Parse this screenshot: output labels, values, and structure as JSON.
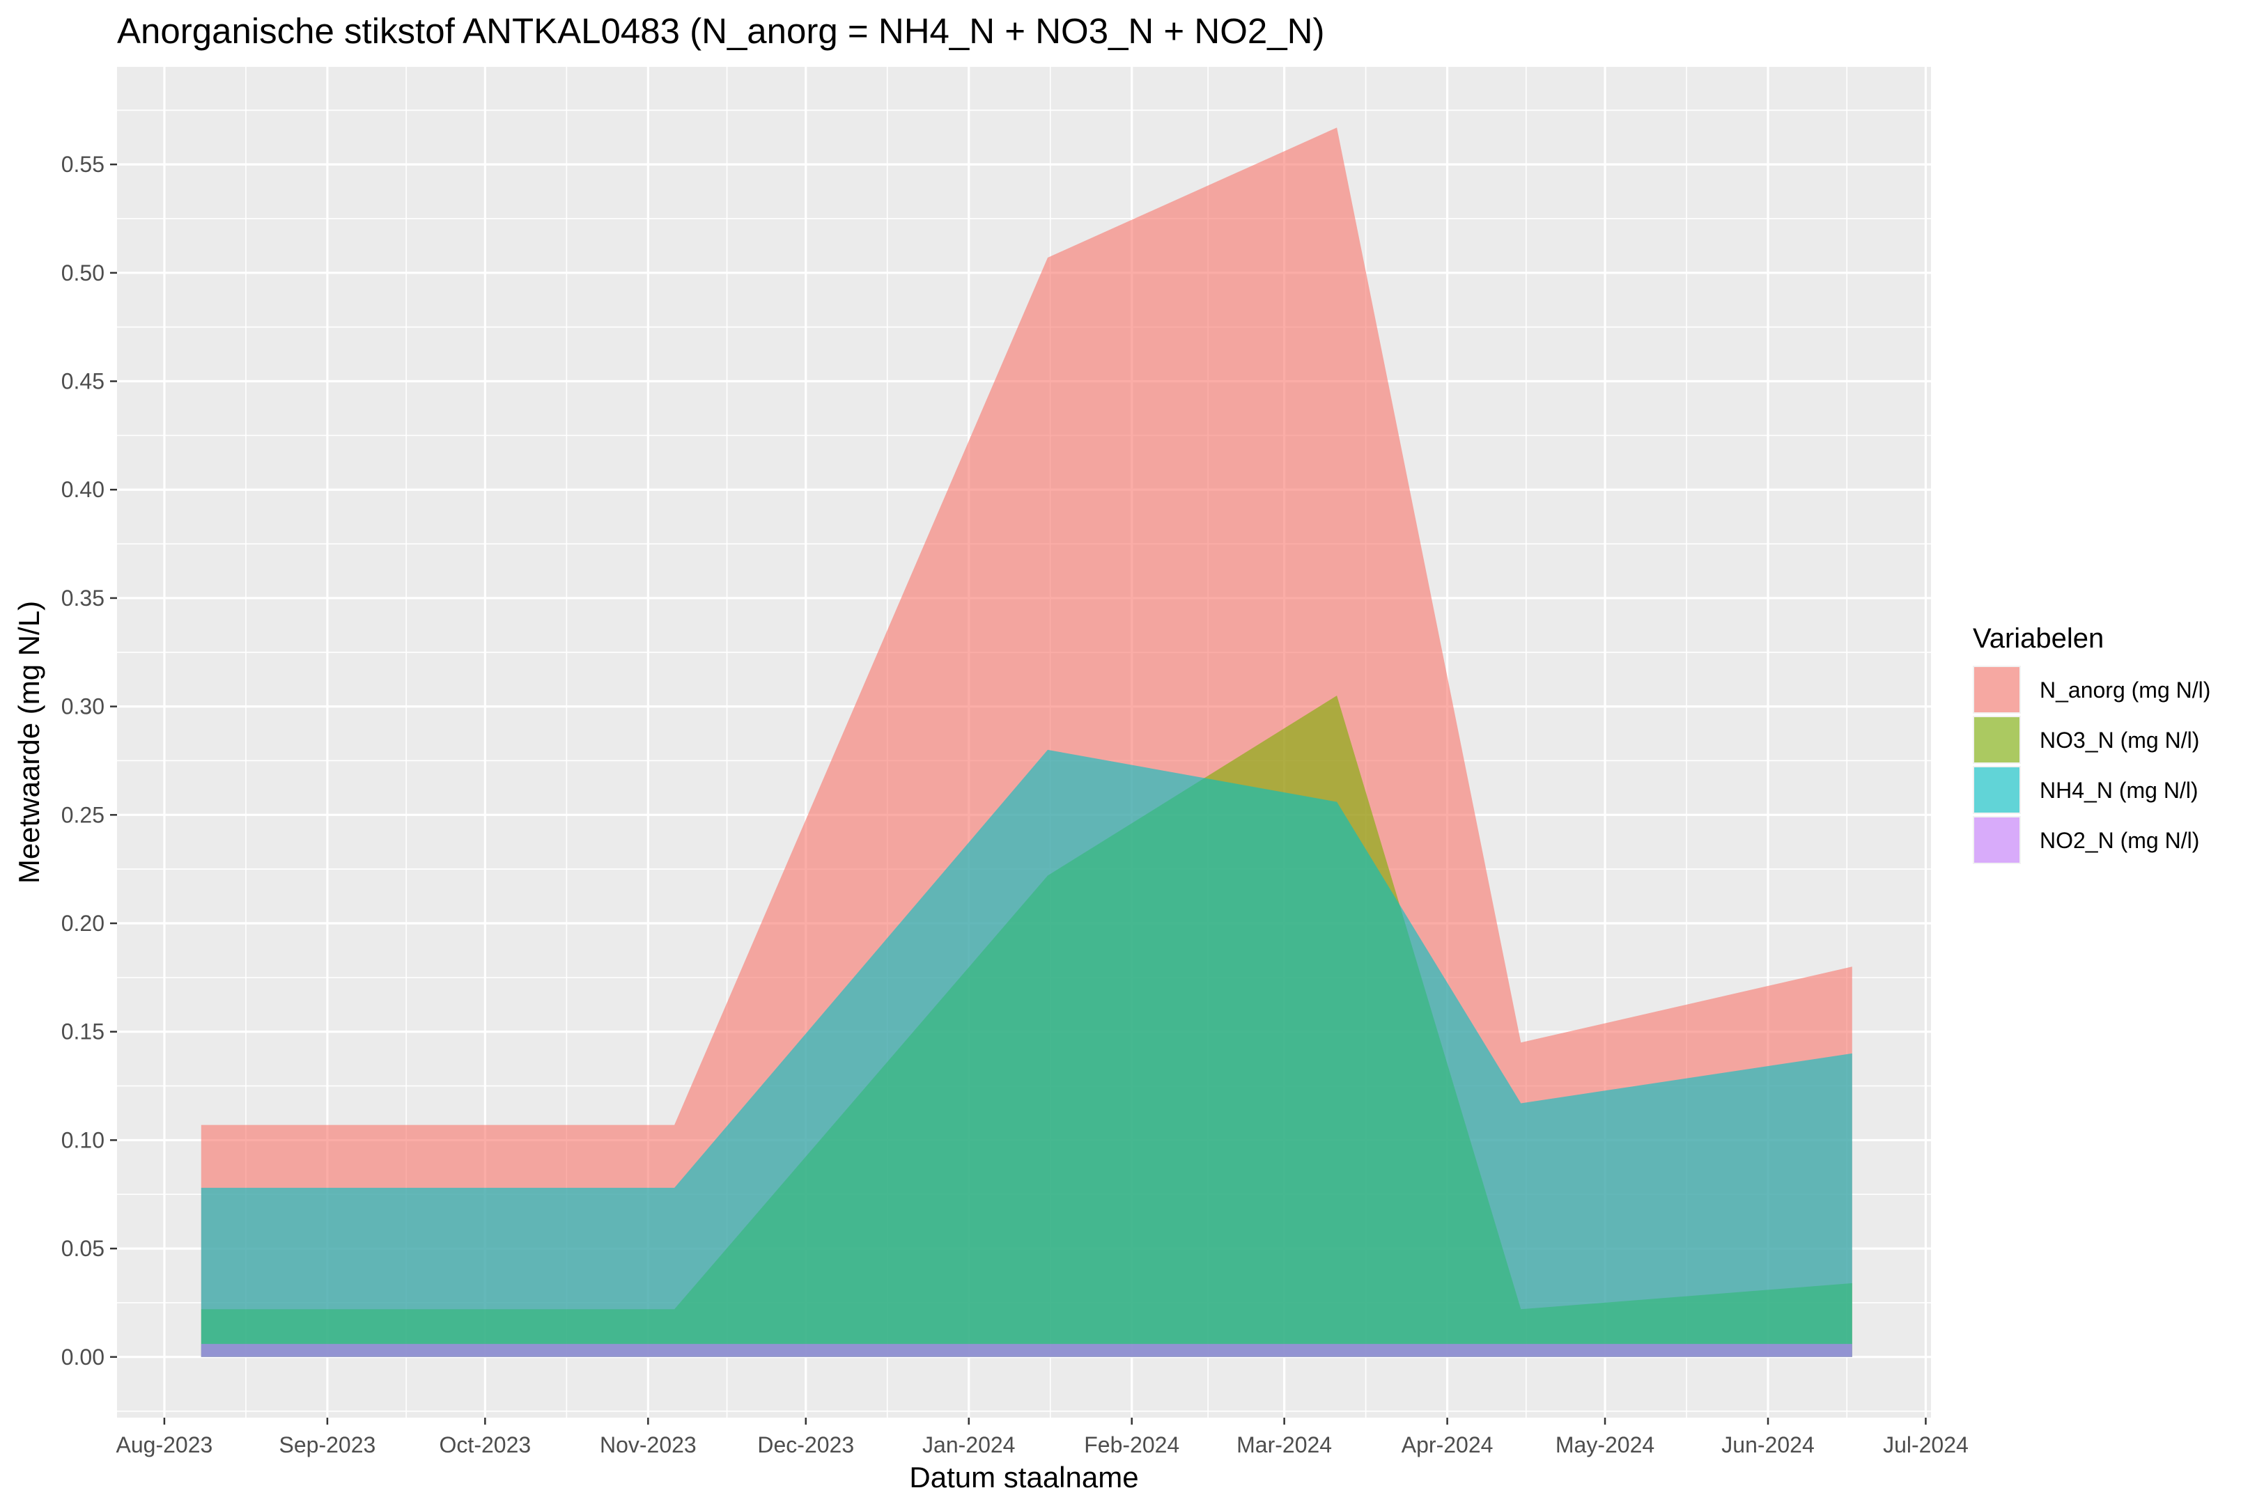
{
  "chart_data": {
    "type": "area",
    "title": "Anorganische stikstof ANTKAL0483 (N_anorg = NH4_N + NO3_N + NO2_N)",
    "xlabel": "Datum staalname",
    "ylabel": "Meetwaarde (mg N/L)",
    "x_ticks": [
      "Aug-2023",
      "Sep-2023",
      "Oct-2023",
      "Nov-2023",
      "Dec-2023",
      "Jan-2024",
      "Feb-2024",
      "Mar-2024",
      "Apr-2024",
      "May-2024",
      "Jun-2024",
      "Jul-2024"
    ],
    "x_tick_dates": [
      "2023-08-01",
      "2023-09-01",
      "2023-10-01",
      "2023-11-01",
      "2023-12-01",
      "2024-01-01",
      "2024-02-01",
      "2024-03-01",
      "2024-04-01",
      "2024-05-01",
      "2024-06-01",
      "2024-07-01"
    ],
    "xlim": [
      "2023-07-23",
      "2024-07-02"
    ],
    "y_ticks": [
      "0.00",
      "0.05",
      "0.10",
      "0.15",
      "0.20",
      "0.25",
      "0.30",
      "0.35",
      "0.40",
      "0.45",
      "0.50",
      "0.55"
    ],
    "ylim": [
      -0.028,
      0.595
    ],
    "grid": true,
    "x": [
      "2023-08-08",
      "2023-11-06",
      "2024-01-16",
      "2024-03-11",
      "2024-04-15",
      "2024-06-17"
    ],
    "legend": {
      "title": "Variabelen",
      "position": "right"
    },
    "series": [
      {
        "name": "N_anorg (mg N/l)",
        "color": "#F8766D",
        "values": [
          0.107,
          0.107,
          0.507,
          0.567,
          0.145,
          0.18
        ]
      },
      {
        "name": "NO3_N (mg N/l)",
        "color": "#7CAE00",
        "values": [
          0.022,
          0.022,
          0.222,
          0.305,
          0.022,
          0.034
        ]
      },
      {
        "name": "NH4_N (mg N/l)",
        "color": "#00BFC4",
        "values": [
          0.078,
          0.078,
          0.28,
          0.256,
          0.117,
          0.14
        ]
      },
      {
        "name": "NO2_N (mg N/l)",
        "color": "#C77CFF",
        "values": [
          0.006,
          0.006,
          0.006,
          0.006,
          0.006,
          0.006
        ]
      }
    ]
  }
}
